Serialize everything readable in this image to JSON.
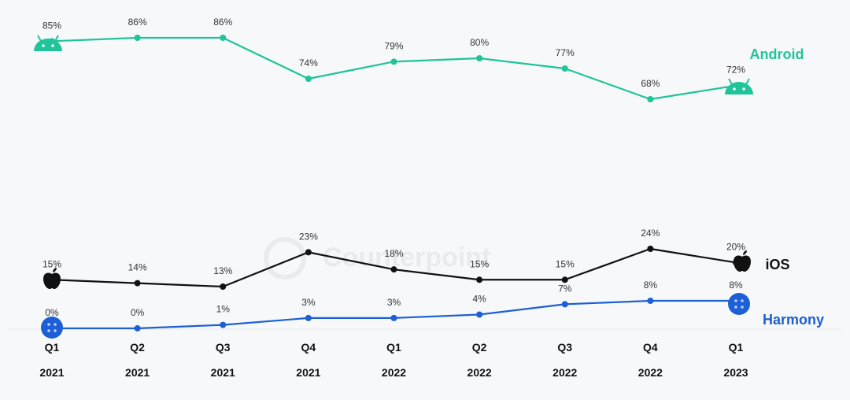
{
  "chart_data": {
    "type": "line",
    "categories": [
      {
        "quarter": "Q1",
        "year": "2021"
      },
      {
        "quarter": "Q2",
        "year": "2021"
      },
      {
        "quarter": "Q3",
        "year": "2021"
      },
      {
        "quarter": "Q4",
        "year": "2021"
      },
      {
        "quarter": "Q1",
        "year": "2022"
      },
      {
        "quarter": "Q2",
        "year": "2022"
      },
      {
        "quarter": "Q3",
        "year": "2022"
      },
      {
        "quarter": "Q4",
        "year": "2022"
      },
      {
        "quarter": "Q1",
        "year": "2023"
      }
    ],
    "series": [
      {
        "name": "Android",
        "color": "#1fc49a",
        "values": [
          85,
          86,
          86,
          74,
          79,
          80,
          77,
          68,
          72
        ],
        "labels": [
          "85%",
          "86%",
          "86%",
          "74%",
          "79%",
          "80%",
          "77%",
          "68%",
          "72%"
        ],
        "end_icon": "android-robot-icon",
        "start_icon": "android-robot-icon"
      },
      {
        "name": "iOS",
        "color": "#111111",
        "values": [
          15,
          14,
          13,
          23,
          18,
          15,
          15,
          24,
          20
        ],
        "labels": [
          "15%",
          "14%",
          "13%",
          "23%",
          "18%",
          "15%",
          "15%",
          "24%",
          "20%"
        ],
        "end_icon": "apple-logo-icon",
        "start_icon": "apple-logo-icon"
      },
      {
        "name": "Harmony",
        "color": "#1c5fd6",
        "values": [
          0,
          0,
          1,
          3,
          3,
          4,
          7,
          8,
          8
        ],
        "labels": [
          "0%",
          "0%",
          "1%",
          "3%",
          "3%",
          "4%",
          "7%",
          "8%",
          "8%"
        ],
        "end_icon": "harmony-logo-icon",
        "start_icon": "harmony-logo-icon"
      }
    ],
    "ylim": [
      0,
      100
    ],
    "grid": false,
    "legend": "inline-right",
    "watermark": "Counterpoint"
  }
}
